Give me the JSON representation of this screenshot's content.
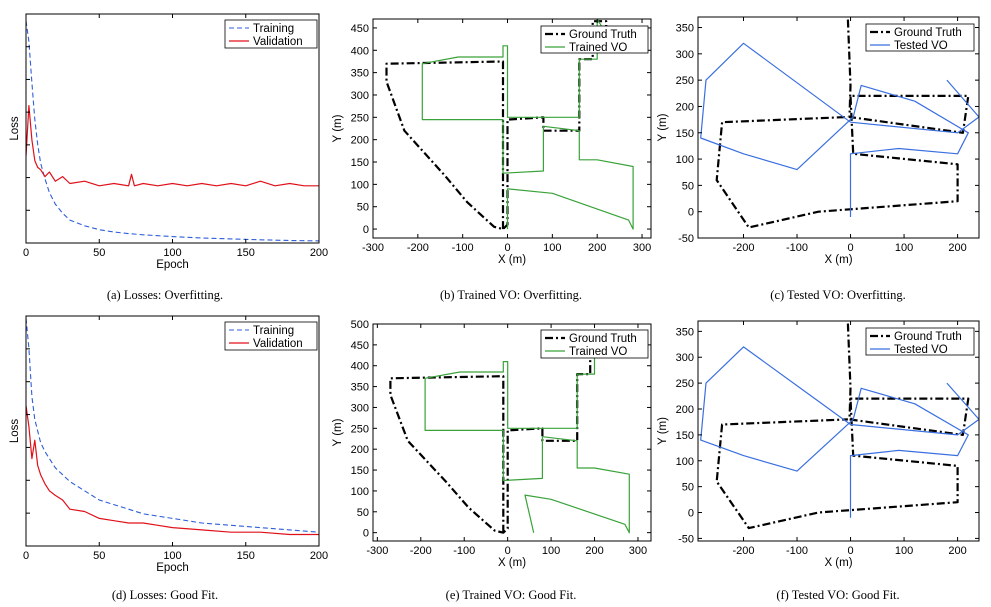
{
  "figure": {
    "captions": [
      "(a)  Losses: Overfitting.",
      "(b)  Trained VO: Overfitting.",
      "(c)  Tested VO: Overfitting.",
      "(d)  Losses: Good Fit.",
      "(e)  Trained VO: Good Fit.",
      "(f)  Tested VO: Good Fit."
    ]
  },
  "colors": {
    "training": "#2f5fd8",
    "validation": "#e0101a",
    "ground_truth": "#000000",
    "trained_vo": "#3aa23a",
    "tested_vo": "#3a6fe0"
  },
  "chart_data": [
    {
      "id": "a",
      "type": "line",
      "xlabel": "Epoch",
      "ylabel": "Loss",
      "xlim": [
        0,
        200
      ],
      "ylim": [
        0,
        1
      ],
      "xticks": [
        0,
        50,
        100,
        150,
        200
      ],
      "yticks": [],
      "legend": "top-right",
      "series": [
        {
          "name": "Training",
          "style": "dashed",
          "x": [
            0,
            2,
            4,
            6,
            8,
            10,
            13,
            16,
            20,
            25,
            30,
            40,
            50,
            60,
            70,
            80,
            90,
            100,
            120,
            140,
            160,
            180,
            200
          ],
          "y": [
            0.97,
            0.88,
            0.7,
            0.54,
            0.43,
            0.35,
            0.28,
            0.22,
            0.17,
            0.13,
            0.1,
            0.075,
            0.058,
            0.048,
            0.041,
            0.036,
            0.032,
            0.028,
            0.022,
            0.018,
            0.014,
            0.011,
            0.009
          ]
        },
        {
          "name": "Validation",
          "style": "solid",
          "x": [
            0,
            2,
            4,
            6,
            8,
            10,
            13,
            16,
            20,
            25,
            30,
            40,
            50,
            60,
            70,
            72,
            74,
            80,
            90,
            100,
            110,
            120,
            130,
            140,
            150,
            160,
            170,
            180,
            190,
            200
          ],
          "y": [
            0.38,
            0.6,
            0.45,
            0.36,
            0.33,
            0.32,
            0.29,
            0.31,
            0.27,
            0.29,
            0.26,
            0.27,
            0.25,
            0.26,
            0.25,
            0.3,
            0.25,
            0.26,
            0.25,
            0.26,
            0.25,
            0.26,
            0.25,
            0.26,
            0.25,
            0.27,
            0.25,
            0.26,
            0.25,
            0.25
          ]
        }
      ]
    },
    {
      "id": "b",
      "type": "line",
      "xlabel": "X (m)",
      "ylabel": "Y (m)",
      "xlim": [
        -300,
        320
      ],
      "ylim": [
        -20,
        470
      ],
      "xticks": [
        -300,
        -200,
        -100,
        0,
        100,
        200,
        300
      ],
      "yticks": [
        0,
        50,
        100,
        150,
        200,
        250,
        300,
        350,
        400,
        450
      ],
      "legend": "top-right",
      "series": [
        {
          "name": "Ground Truth",
          "style": "dashdot",
          "points": [
            [
              -10,
              0
            ],
            [
              -10,
              240
            ],
            [
              -10,
              375
            ],
            [
              -270,
              370
            ],
            [
              -270,
              330
            ],
            [
              -230,
              220
            ],
            [
              -140,
              120
            ],
            [
              -90,
              60
            ],
            [
              -30,
              5
            ],
            [
              -10,
              0
            ],
            [
              0,
              10
            ],
            [
              0,
              90
            ],
            [
              0,
              245
            ],
            [
              80,
              250
            ],
            [
              80,
              220
            ],
            [
              160,
              220
            ],
            [
              160,
              380
            ],
            [
              190,
              380
            ],
            [
              190,
              465
            ],
            [
              220,
              465
            ],
            [
              220,
              450
            ]
          ]
        },
        {
          "name": "Trained VO",
          "style": "solid",
          "points": [
            [
              0,
              0
            ],
            [
              0,
              90
            ],
            [
              100,
              80
            ],
            [
              270,
              20
            ],
            [
              280,
              0
            ],
            [
              280,
              140
            ],
            [
              200,
              155
            ],
            [
              160,
              155
            ],
            [
              160,
              220
            ],
            [
              80,
              230
            ],
            [
              80,
              130
            ],
            [
              -10,
              125
            ],
            [
              -10,
              245
            ],
            [
              -190,
              245
            ],
            [
              -190,
              370
            ],
            [
              -110,
              385
            ],
            [
              -10,
              385
            ],
            [
              -10,
              410
            ],
            [
              0,
              410
            ],
            [
              0,
              250
            ],
            [
              90,
              250
            ],
            [
              160,
              250
            ],
            [
              160,
              380
            ],
            [
              200,
              380
            ],
            [
              200,
              470
            ],
            [
              230,
              420
            ],
            [
              150,
              420
            ]
          ]
        }
      ]
    },
    {
      "id": "c",
      "type": "line",
      "xlabel": "X (m)",
      "ylabel": "Y (m)",
      "xlim": [
        -285,
        240
      ],
      "ylim": [
        -50,
        370
      ],
      "xticks": [
        -200,
        -100,
        0,
        100,
        200
      ],
      "yticks": [
        -50,
        0,
        50,
        100,
        150,
        200,
        250,
        300,
        350
      ],
      "legend": "top-right",
      "series": [
        {
          "name": "Ground Truth",
          "style": "dashdot",
          "points": [
            [
              -5,
              365
            ],
            [
              0,
              240
            ],
            [
              -2,
              180
            ],
            [
              210,
              150
            ],
            [
              220,
              220
            ],
            [
              0,
              220
            ],
            [
              5,
              110
            ],
            [
              200,
              90
            ],
            [
              200,
              20
            ],
            [
              -60,
              0
            ],
            [
              -190,
              -30
            ],
            [
              -250,
              60
            ],
            [
              -240,
              170
            ],
            [
              -5,
              180
            ]
          ]
        },
        {
          "name": "Tested VO",
          "style": "solid",
          "points": [
            [
              0,
              -10
            ],
            [
              0,
              110
            ],
            [
              90,
              120
            ],
            [
              200,
              110
            ],
            [
              220,
              150
            ],
            [
              120,
              210
            ],
            [
              20,
              240
            ],
            [
              5,
              180
            ],
            [
              -100,
              80
            ],
            [
              -200,
              110
            ],
            [
              -280,
              140
            ],
            [
              -270,
              250
            ],
            [
              -200,
              320
            ],
            [
              0,
              170
            ],
            [
              200,
              150
            ],
            [
              240,
              180
            ],
            [
              180,
              250
            ]
          ]
        }
      ]
    },
    {
      "id": "d",
      "type": "line",
      "xlabel": "Epoch",
      "ylabel": "Loss",
      "xlim": [
        0,
        200
      ],
      "ylim": [
        0,
        1
      ],
      "xticks": [
        0,
        50,
        100,
        150,
        200
      ],
      "yticks": [],
      "legend": "top-right",
      "series": [
        {
          "name": "Training",
          "style": "dashed",
          "x": [
            0,
            2,
            4,
            6,
            8,
            10,
            13,
            16,
            20,
            25,
            30,
            40,
            50,
            60,
            70,
            80,
            90,
            100,
            120,
            140,
            160,
            180,
            200
          ],
          "y": [
            0.99,
            0.86,
            0.65,
            0.55,
            0.5,
            0.45,
            0.41,
            0.38,
            0.34,
            0.31,
            0.28,
            0.24,
            0.2,
            0.18,
            0.16,
            0.14,
            0.13,
            0.12,
            0.1,
            0.09,
            0.08,
            0.07,
            0.06
          ]
        },
        {
          "name": "Validation",
          "style": "solid",
          "x": [
            0,
            2,
            4,
            6,
            8,
            10,
            13,
            16,
            20,
            25,
            30,
            40,
            50,
            60,
            70,
            80,
            90,
            100,
            120,
            140,
            160,
            180,
            200
          ],
          "y": [
            0.61,
            0.52,
            0.38,
            0.46,
            0.35,
            0.31,
            0.27,
            0.24,
            0.22,
            0.2,
            0.16,
            0.15,
            0.12,
            0.11,
            0.1,
            0.1,
            0.09,
            0.08,
            0.07,
            0.06,
            0.06,
            0.05,
            0.05
          ]
        }
      ]
    },
    {
      "id": "e",
      "type": "line",
      "xlabel": "X (m)",
      "ylabel": "Y (m)",
      "xlim": [
        -310,
        330
      ],
      "ylim": [
        -20,
        500
      ],
      "xticks": [
        -300,
        -200,
        -100,
        0,
        100,
        200,
        300
      ],
      "yticks": [
        0,
        50,
        100,
        150,
        200,
        250,
        300,
        350,
        400,
        450,
        500
      ],
      "legend": "top-right",
      "series": [
        {
          "name": "Ground Truth",
          "style": "dashdot",
          "points": [
            [
              -10,
              0
            ],
            [
              -10,
              240
            ],
            [
              -10,
              375
            ],
            [
              -270,
              370
            ],
            [
              -270,
              330
            ],
            [
              -230,
              220
            ],
            [
              -140,
              120
            ],
            [
              -90,
              60
            ],
            [
              -30,
              5
            ],
            [
              -10,
              0
            ],
            [
              0,
              10
            ],
            [
              0,
              90
            ],
            [
              0,
              245
            ],
            [
              80,
              250
            ],
            [
              80,
              220
            ],
            [
              160,
              220
            ],
            [
              160,
              380
            ],
            [
              190,
              380
            ],
            [
              190,
              465
            ],
            [
              220,
              465
            ],
            [
              220,
              450
            ]
          ]
        },
        {
          "name": "Trained VO",
          "style": "solid",
          "points": [
            [
              60,
              0
            ],
            [
              40,
              90
            ],
            [
              100,
              80
            ],
            [
              270,
              20
            ],
            [
              280,
              0
            ],
            [
              280,
              140
            ],
            [
              200,
              155
            ],
            [
              160,
              155
            ],
            [
              160,
              220
            ],
            [
              80,
              230
            ],
            [
              80,
              130
            ],
            [
              -10,
              125
            ],
            [
              -10,
              245
            ],
            [
              -190,
              245
            ],
            [
              -190,
              370
            ],
            [
              -110,
              385
            ],
            [
              -10,
              385
            ],
            [
              -10,
              410
            ],
            [
              0,
              410
            ],
            [
              0,
              250
            ],
            [
              90,
              250
            ],
            [
              160,
              250
            ],
            [
              160,
              380
            ],
            [
              200,
              380
            ],
            [
              200,
              470
            ],
            [
              230,
              420
            ],
            [
              150,
              420
            ]
          ]
        }
      ]
    },
    {
      "id": "f",
      "type": "line",
      "xlabel": "X (m)",
      "ylabel": "Y (m)",
      "xlim": [
        -285,
        240
      ],
      "ylim": [
        -55,
        370
      ],
      "xticks": [
        -200,
        -100,
        0,
        100,
        200
      ],
      "yticks": [
        -50,
        0,
        50,
        100,
        150,
        200,
        250,
        300,
        350
      ],
      "legend": "top-right",
      "series": [
        {
          "name": "Ground Truth",
          "style": "dashdot",
          "points": [
            [
              -5,
              365
            ],
            [
              0,
              240
            ],
            [
              -2,
              180
            ],
            [
              210,
              150
            ],
            [
              220,
              220
            ],
            [
              0,
              220
            ],
            [
              5,
              110
            ],
            [
              200,
              90
            ],
            [
              200,
              20
            ],
            [
              -60,
              0
            ],
            [
              -190,
              -30
            ],
            [
              -250,
              60
            ],
            [
              -240,
              170
            ],
            [
              -5,
              180
            ]
          ]
        },
        {
          "name": "Tested VO",
          "style": "solid",
          "points": [
            [
              0,
              -10
            ],
            [
              0,
              110
            ],
            [
              90,
              120
            ],
            [
              200,
              110
            ],
            [
              220,
              150
            ],
            [
              120,
              210
            ],
            [
              20,
              240
            ],
            [
              5,
              180
            ],
            [
              -100,
              80
            ],
            [
              -200,
              110
            ],
            [
              -280,
              140
            ],
            [
              -270,
              250
            ],
            [
              -200,
              320
            ],
            [
              0,
              170
            ],
            [
              200,
              150
            ],
            [
              240,
              180
            ],
            [
              180,
              250
            ]
          ]
        }
      ]
    }
  ]
}
